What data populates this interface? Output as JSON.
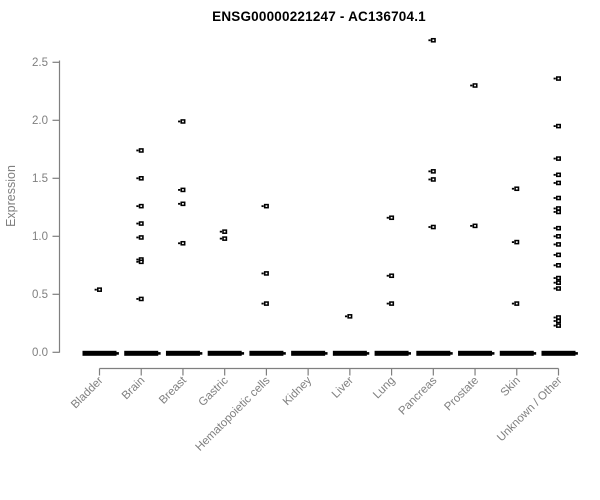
{
  "chart_data": {
    "type": "scatter",
    "title": "ENSG00000221247 - AC136704.1",
    "ylabel": "Expression",
    "xlabel": "",
    "yticks": [
      "0.0",
      "0.5",
      "1.0",
      "1.5",
      "2.0",
      "2.5"
    ],
    "ylim": [
      0,
      2.72
    ],
    "grid": false,
    "legend": "none",
    "zero_cluster_note": "each tissue shows a dense horizontal bar of many samples at expression 0",
    "groups": [
      {
        "label": "Bladder",
        "values": [
          0.54
        ],
        "zero_cluster": true
      },
      {
        "label": "Brain",
        "values": [
          1.74,
          1.5,
          1.26,
          1.11,
          0.99,
          0.8,
          0.78,
          0.46
        ],
        "zero_cluster": true
      },
      {
        "label": "Breast",
        "values": [
          1.99,
          1.4,
          1.28,
          0.94
        ],
        "zero_cluster": true
      },
      {
        "label": "Gastric",
        "values": [
          1.04,
          0.98
        ],
        "zero_cluster": true
      },
      {
        "label": "Hematopoietic cells",
        "values": [
          1.26,
          0.68,
          0.42
        ],
        "zero_cluster": true
      },
      {
        "label": "Kidney",
        "values": [],
        "zero_cluster": true
      },
      {
        "label": "Liver",
        "values": [
          0.31
        ],
        "zero_cluster": true
      },
      {
        "label": "Lung",
        "values": [
          1.16,
          0.66,
          0.42
        ],
        "zero_cluster": true
      },
      {
        "label": "Pancreas",
        "values": [
          2.69,
          1.56,
          1.49,
          1.08
        ],
        "zero_cluster": true
      },
      {
        "label": "Prostate",
        "values": [
          2.3,
          1.09
        ],
        "zero_cluster": true
      },
      {
        "label": "Skin",
        "values": [
          1.41,
          0.95,
          0.42
        ],
        "zero_cluster": true
      },
      {
        "label": "Unknown / Other",
        "values": [
          2.36,
          1.95,
          1.67,
          1.53,
          1.46,
          1.33,
          1.24,
          1.21,
          1.07,
          1.0,
          0.93,
          0.84,
          0.75,
          0.64,
          0.6,
          0.55,
          0.3,
          0.27,
          0.23
        ],
        "zero_cluster": true
      }
    ],
    "colors": {
      "points": "#000000",
      "axis": "#7f7f7f",
      "tick_labels": "#7f7f7f",
      "title": "#000000",
      "background": "#ffffff"
    }
  }
}
